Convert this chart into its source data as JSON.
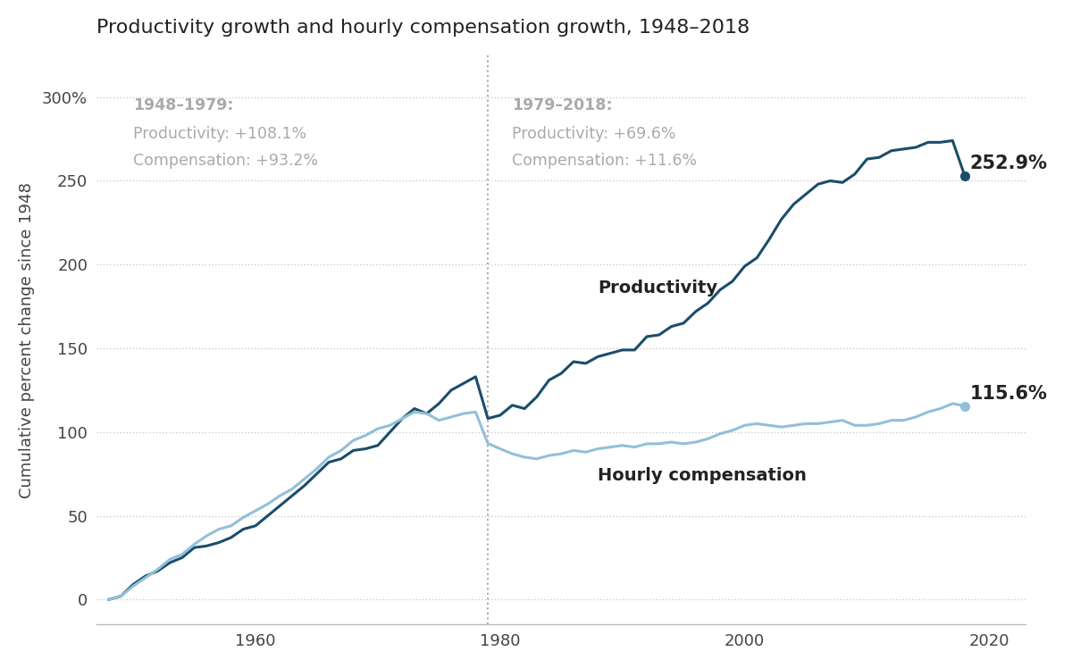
{
  "title": "Productivity growth and hourly compensation growth, 1948–2018",
  "ylabel": "Cumulative percent change since 1948",
  "ylim": [
    -15,
    325
  ],
  "xlim": [
    1947,
    2023
  ],
  "yticks": [
    0,
    50,
    100,
    150,
    200,
    250,
    300
  ],
  "ytick_labels": [
    "0",
    "50",
    "100",
    "150",
    "200",
    "250",
    "300%"
  ],
  "xticks": [
    1960,
    1980,
    2000,
    2020
  ],
  "vline_x": 1979,
  "productivity_color": "#1a4d6b",
  "compensation_color": "#92c0d8",
  "annotation_color": "#aaaaaa",
  "title_fontsize": 16,
  "label_fontsize": 13,
  "annotation_fontsize": 12.5,
  "endlabel_fontsize": 15,
  "period1_header": "1948–1979:",
  "period1_prod": "Productivity: +108.1%",
  "period1_comp": "Compensation: +93.2%",
  "period2_header": "1979–2018:",
  "period2_prod": "Productivity: +69.6%",
  "period2_comp": "Compensation: +11.6%",
  "prod_end_label": "252.9%",
  "comp_end_label": "115.6%",
  "prod_line_label": "Productivity",
  "comp_line_label": "Hourly compensation",
  "productivity_years": [
    1948,
    1949,
    1950,
    1951,
    1952,
    1953,
    1954,
    1955,
    1956,
    1957,
    1958,
    1959,
    1960,
    1961,
    1962,
    1963,
    1964,
    1965,
    1966,
    1967,
    1968,
    1969,
    1970,
    1971,
    1972,
    1973,
    1974,
    1975,
    1976,
    1977,
    1978,
    1979,
    1980,
    1981,
    1982,
    1983,
    1984,
    1985,
    1986,
    1987,
    1988,
    1989,
    1990,
    1991,
    1992,
    1993,
    1994,
    1995,
    1996,
    1997,
    1998,
    1999,
    2000,
    2001,
    2002,
    2003,
    2004,
    2005,
    2006,
    2007,
    2008,
    2009,
    2010,
    2011,
    2012,
    2013,
    2014,
    2015,
    2016,
    2017,
    2018
  ],
  "productivity_values": [
    0,
    2,
    9,
    14,
    17,
    22,
    25,
    31,
    32,
    34,
    37,
    42,
    44,
    50,
    56,
    62,
    68,
    75,
    82,
    84,
    89,
    90,
    92,
    100,
    108,
    114,
    111,
    117,
    125,
    129,
    133,
    108.1,
    110,
    116,
    114,
    121,
    131,
    135,
    142,
    141,
    145,
    147,
    149,
    149,
    157,
    158,
    163,
    165,
    172,
    177,
    185,
    190,
    199,
    204,
    215,
    227,
    236,
    242,
    248,
    250,
    249,
    254,
    263,
    264,
    268,
    269,
    270,
    273,
    273,
    274,
    252.9
  ],
  "compensation_years": [
    1948,
    1949,
    1950,
    1951,
    1952,
    1953,
    1954,
    1955,
    1956,
    1957,
    1958,
    1959,
    1960,
    1961,
    1962,
    1963,
    1964,
    1965,
    1966,
    1967,
    1968,
    1969,
    1970,
    1971,
    1972,
    1973,
    1974,
    1975,
    1976,
    1977,
    1978,
    1979,
    1980,
    1981,
    1982,
    1983,
    1984,
    1985,
    1986,
    1987,
    1988,
    1989,
    1990,
    1991,
    1992,
    1993,
    1994,
    1995,
    1996,
    1997,
    1998,
    1999,
    2000,
    2001,
    2002,
    2003,
    2004,
    2005,
    2006,
    2007,
    2008,
    2009,
    2010,
    2011,
    2012,
    2013,
    2014,
    2015,
    2016,
    2017,
    2018
  ],
  "compensation_values": [
    0,
    2,
    8,
    13,
    18,
    24,
    27,
    33,
    38,
    42,
    44,
    49,
    53,
    57,
    62,
    66,
    72,
    78,
    85,
    89,
    95,
    98,
    102,
    104,
    108,
    112,
    111,
    107,
    109,
    111,
    112,
    93.2,
    90,
    87,
    85,
    84,
    86,
    87,
    89,
    88,
    90,
    91,
    92,
    91,
    93,
    93,
    94,
    93,
    94,
    96,
    99,
    101,
    104,
    105,
    104,
    103,
    104,
    105,
    105,
    106,
    107,
    104,
    104,
    105,
    107,
    107,
    109,
    112,
    114,
    117,
    115.6
  ]
}
